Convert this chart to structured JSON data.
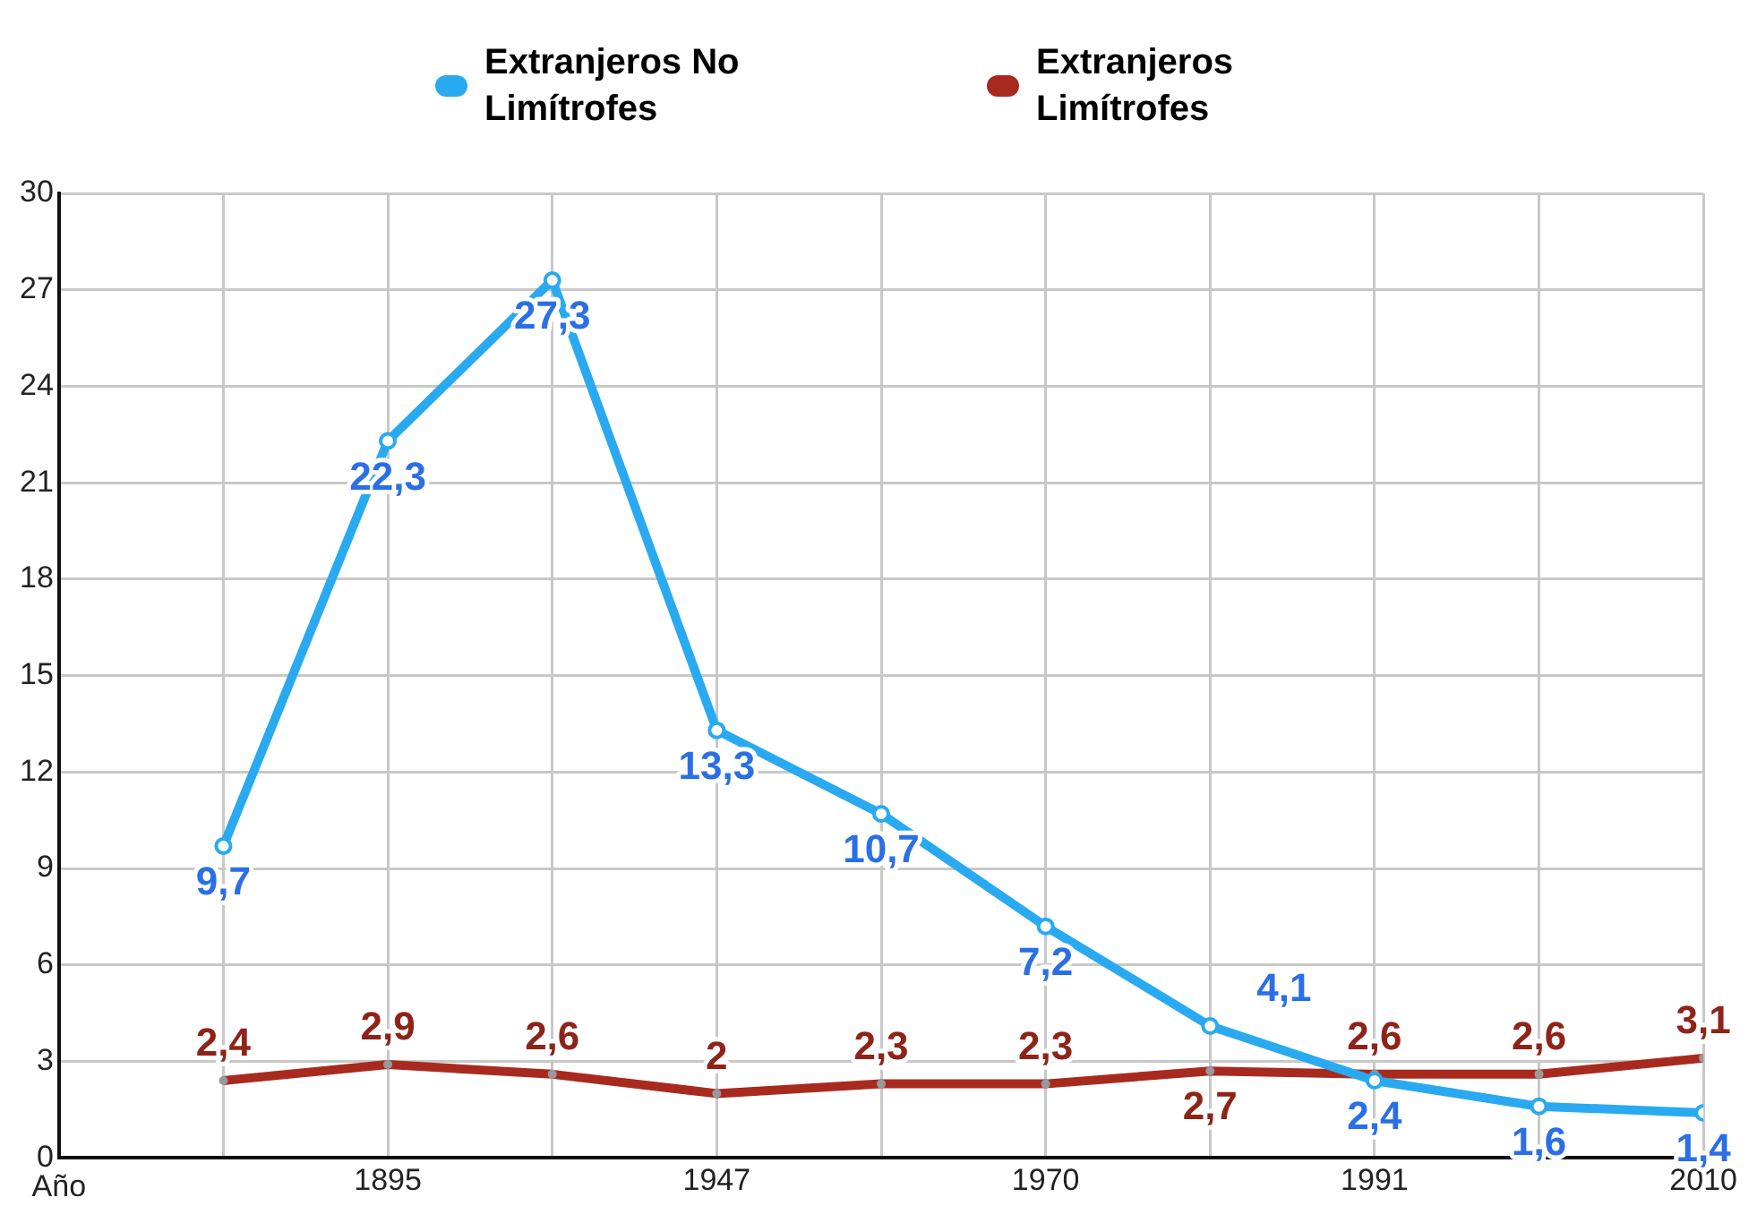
{
  "chart_data": {
    "type": "line",
    "xlabel": "Año",
    "categories": [
      null,
      "1895",
      null,
      "1947",
      null,
      "1970",
      null,
      "1991",
      null,
      "2010"
    ],
    "series": [
      {
        "name": "Extranjeros No Limítrofes",
        "color": "#29aaf0",
        "values": [
          9.7,
          22.3,
          27.3,
          13.3,
          10.7,
          7.2,
          4.1,
          2.4,
          1.6,
          1.4
        ],
        "value_labels": [
          "9,7",
          "22,3",
          "27,3",
          "13,3",
          "10,7",
          "7,2",
          "4,1",
          "2,4",
          "1,6",
          "1,4"
        ]
      },
      {
        "name": "Extranjeros Limítrofes",
        "color": "#a82a1f",
        "values": [
          2.4,
          2.9,
          2.6,
          2,
          2.3,
          2.3,
          2.7,
          2.6,
          2.6,
          3.1
        ],
        "value_labels": [
          "2,4",
          "2,9",
          "2,6",
          "2",
          "2,3",
          "2,3",
          "2,7",
          "2,6",
          "2,6",
          "3,1"
        ]
      }
    ],
    "ylim": [
      0,
      30
    ],
    "yticks": [
      0,
      3,
      6,
      9,
      12,
      15,
      18,
      21,
      24,
      27,
      30
    ],
    "grid": true,
    "legend": "top",
    "marker": "circle",
    "line_style": "solid"
  }
}
